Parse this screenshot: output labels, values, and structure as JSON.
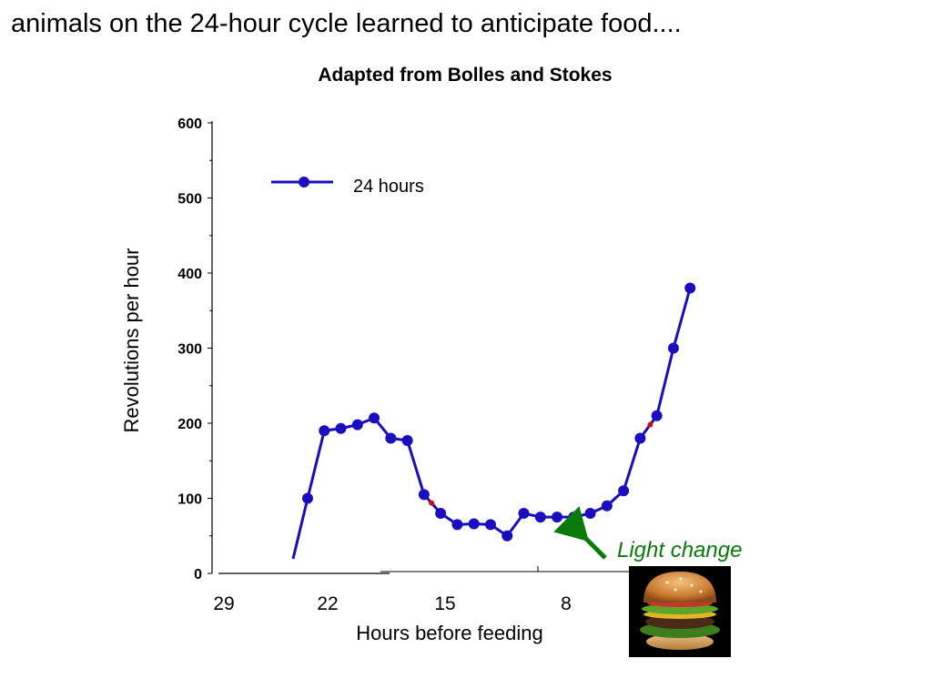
{
  "slide": {
    "title": "animals on the 24-hour cycle learned to anticipate food....",
    "image_caption_icon": "hamburger-photo"
  },
  "chart_data": {
    "type": "line",
    "title": "Adapted from Bolles and Stokes",
    "xlabel": "Hours before feeding",
    "ylabel": "Revolutions per hour",
    "x_tick_labels": [
      "29",
      "22",
      "15",
      "8"
    ],
    "y_ticks": [
      0,
      100,
      200,
      300,
      400,
      500,
      600
    ],
    "ylim": [
      0,
      600
    ],
    "legend_position": "top-left",
    "series": [
      {
        "name": "24 hours",
        "color": "#1a0dbf",
        "values": [
          100,
          190,
          193,
          198,
          207,
          180,
          177,
          105,
          80,
          65,
          66,
          65,
          50,
          80,
          75,
          75,
          75,
          80,
          90,
          110,
          180,
          210,
          300,
          380
        ]
      }
    ],
    "annotations": [
      {
        "text": "Light change",
        "color": "#0a7a0a",
        "points_to_index": 16
      }
    ]
  }
}
